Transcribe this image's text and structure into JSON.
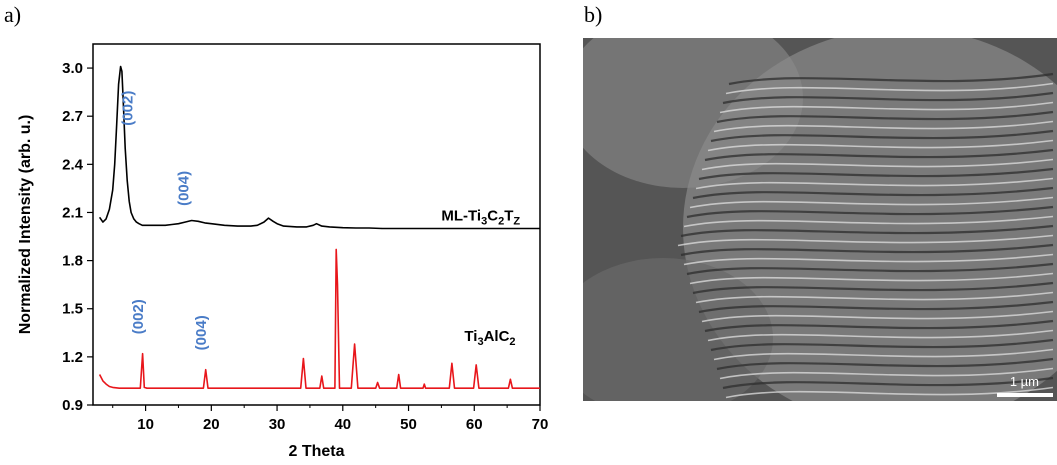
{
  "panels": {
    "a": "a)",
    "b": "b)"
  },
  "chart_data": {
    "type": "line",
    "xlabel": "2 Theta",
    "ylabel": "Normalized Intensity (arb. u.)",
    "xlim": [
      2,
      70
    ],
    "ylim": [
      0.9,
      3.15
    ],
    "xticks": [
      10,
      20,
      30,
      40,
      50,
      60,
      70
    ],
    "yticks": [
      0.9,
      1.2,
      1.5,
      1.8,
      2.1,
      2.4,
      2.7,
      3.0
    ],
    "grid": false,
    "series": [
      {
        "name": "ML-Ti3C2Tz",
        "color": "#000000",
        "x": [
          3,
          3.5,
          4,
          4.5,
          5,
          5.3,
          5.6,
          5.9,
          6.2,
          6.4,
          6.6,
          6.9,
          7.2,
          7.5,
          7.8,
          8.2,
          8.6,
          9.0,
          9.5,
          10,
          11,
          12,
          13,
          14,
          15,
          16,
          17,
          18,
          19,
          20,
          22,
          24,
          26,
          27,
          28,
          28.7,
          29.4,
          30,
          31,
          33,
          34.5,
          35.5,
          36,
          36.8,
          38,
          40,
          42,
          44,
          46,
          50,
          55,
          60,
          65,
          70
        ],
        "y": [
          2.07,
          2.04,
          2.06,
          2.12,
          2.24,
          2.4,
          2.65,
          2.9,
          3.01,
          2.98,
          2.8,
          2.5,
          2.3,
          2.17,
          2.1,
          2.06,
          2.04,
          2.03,
          2.02,
          2.02,
          2.02,
          2.02,
          2.02,
          2.025,
          2.03,
          2.04,
          2.05,
          2.045,
          2.035,
          2.03,
          2.02,
          2.015,
          2.015,
          2.02,
          2.04,
          2.065,
          2.045,
          2.03,
          2.015,
          2.01,
          2.01,
          2.02,
          2.03,
          2.015,
          2.01,
          2.005,
          2.003,
          2.003,
          2.0,
          2.0,
          2.0,
          2.0,
          2.0,
          2.0
        ]
      },
      {
        "name": "Ti3AlC2",
        "color": "#e8161b",
        "x": [
          3,
          3.5,
          4,
          4.5,
          5,
          6,
          8,
          9.2,
          9.55,
          9.8,
          10.2,
          12,
          15,
          18.8,
          19.15,
          19.5,
          20,
          25,
          29,
          33.6,
          34.0,
          34.4,
          35.5,
          36.5,
          36.8,
          37.1,
          38.3,
          38.8,
          39.0,
          39.2,
          39.5,
          41.3,
          41.8,
          42.3,
          43,
          45,
          45.3,
          45.6,
          48.2,
          48.5,
          48.8,
          52.2,
          52.4,
          52.6,
          56.2,
          56.6,
          57.0,
          59.9,
          60.3,
          60.7,
          65.2,
          65.5,
          65.8,
          70
        ],
        "y": [
          1.09,
          1.05,
          1.03,
          1.015,
          1.01,
          1.005,
          1.005,
          1.005,
          1.22,
          1.01,
          1.005,
          1.005,
          1.005,
          1.005,
          1.12,
          1.005,
          1.005,
          1.005,
          1.005,
          1.005,
          1.19,
          1.005,
          1.005,
          1.005,
          1.08,
          1.005,
          1.005,
          1.005,
          1.87,
          1.65,
          1.005,
          1.005,
          1.28,
          1.005,
          1.005,
          1.005,
          1.04,
          1.005,
          1.005,
          1.09,
          1.005,
          1.005,
          1.03,
          1.005,
          1.005,
          1.16,
          1.005,
          1.005,
          1.15,
          1.005,
          1.005,
          1.06,
          1.005,
          1.005
        ]
      }
    ],
    "series_labels": [
      {
        "text": "ML-Ti",
        "sub1": "3",
        "mid1": "C",
        "sub2": "2",
        "mid2": "T",
        "sub3": "Z",
        "x": 55,
        "y": 2.0
      },
      {
        "text": "Ti",
        "sub1": "3",
        "mid1": "AlC",
        "sub2": "2",
        "mid2": "",
        "sub3": "",
        "x": 58.5,
        "y": 1.25
      }
    ],
    "annotations": [
      {
        "text": "(002)",
        "x": 8.0,
        "y": 2.75,
        "color": "#4a7cc7"
      },
      {
        "text": "(004)",
        "x": 16.5,
        "y": 2.25,
        "color": "#4a7cc7"
      },
      {
        "text": "(002)",
        "x": 9.6,
        "y": 1.45,
        "color": "#4a7cc7"
      },
      {
        "text": "(004)",
        "x": 19.2,
        "y": 1.35,
        "color": "#4a7cc7"
      }
    ]
  },
  "sem_image": {
    "scale_label": "1 µm"
  }
}
